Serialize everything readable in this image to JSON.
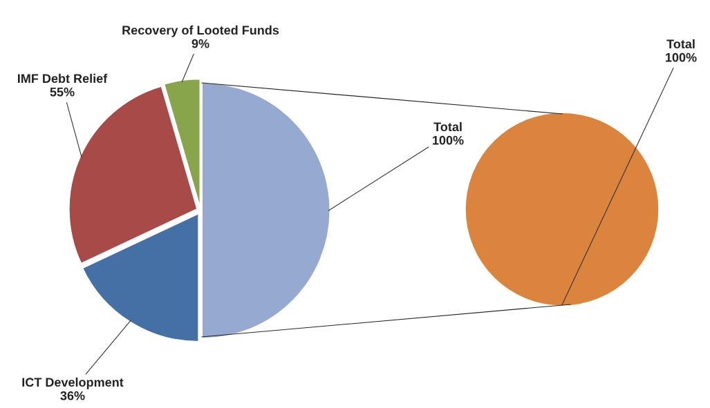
{
  "chart_data": [
    {
      "type": "pie",
      "categories": [
        "Total",
        "ICT Development",
        "IMF Debt Relief",
        "Recovery of Looted Funds"
      ],
      "values": [
        100,
        36,
        55,
        9
      ],
      "value_labels": [
        "100%",
        "36%",
        "55%",
        "9%"
      ],
      "colors": [
        "#95a9d1",
        "#4470a6",
        "#a84a47",
        "#88a54c"
      ]
    },
    {
      "type": "pie",
      "categories": [
        "Total"
      ],
      "values": [
        100
      ],
      "value_labels": [
        "100%"
      ],
      "colors": [
        "#db843d"
      ]
    }
  ]
}
